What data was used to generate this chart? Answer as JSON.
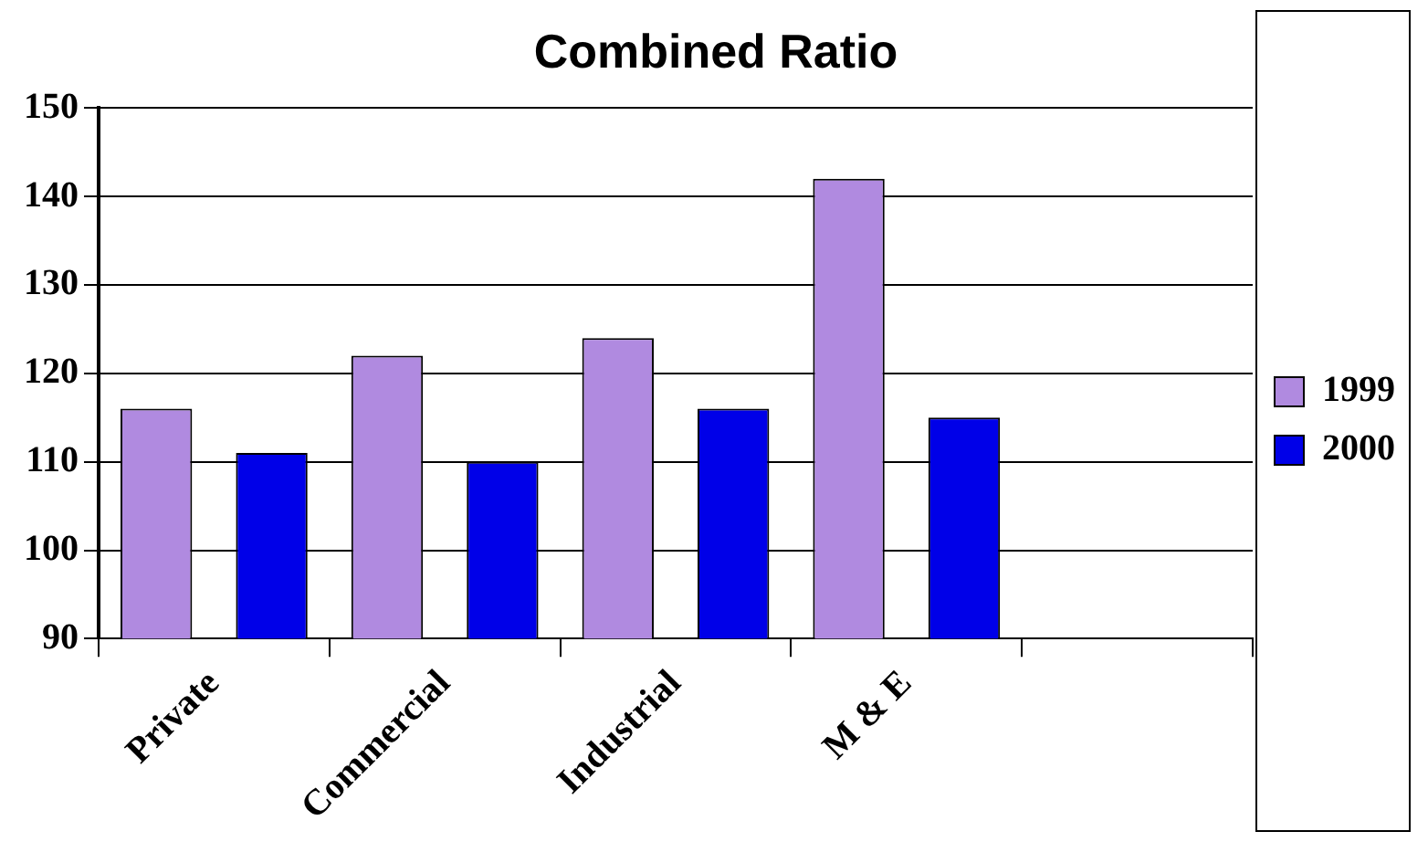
{
  "chart_data": {
    "type": "bar",
    "title": "Combined Ratio",
    "categories": [
      "Private",
      "Commercial",
      "Industrial",
      "M & E",
      null
    ],
    "series": [
      {
        "name": "1999",
        "color": "#b08ae0",
        "values": [
          116,
          122,
          124,
          142,
          null
        ]
      },
      {
        "name": "2000",
        "color": "#0000e8",
        "values": [
          111,
          110,
          116,
          115,
          null
        ]
      }
    ],
    "ylim": [
      90,
      150
    ],
    "yticks": [
      90,
      100,
      110,
      120,
      130,
      140,
      150
    ],
    "grid": "y",
    "legend": "right"
  }
}
